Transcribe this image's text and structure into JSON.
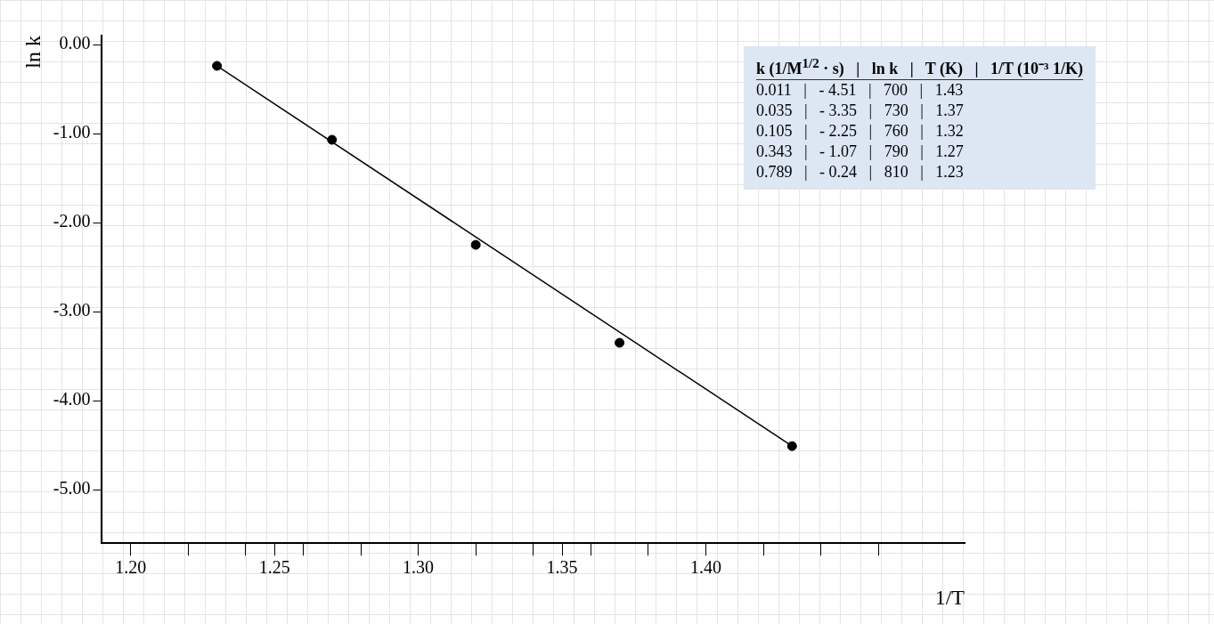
{
  "chart_data": {
    "type": "scatter",
    "xlabel": "1/T",
    "ylabel": "ln k",
    "xlim": [
      1.19,
      1.49
    ],
    "ylim": [
      -5.6,
      0.1
    ],
    "xticks": [
      {
        "value": 1.2,
        "label": "1.20"
      },
      {
        "value": 1.22,
        "label": null
      },
      {
        "value": 1.24,
        "label": null
      },
      {
        "value": 1.25,
        "label": "1.25"
      },
      {
        "value": 1.26,
        "label": null
      },
      {
        "value": 1.28,
        "label": null
      },
      {
        "value": 1.3,
        "label": "1.30"
      },
      {
        "value": 1.32,
        "label": null
      },
      {
        "value": 1.34,
        "label": null
      },
      {
        "value": 1.35,
        "label": "1.35"
      },
      {
        "value": 1.36,
        "label": null
      },
      {
        "value": 1.38,
        "label": null
      },
      {
        "value": 1.4,
        "label": "1.40"
      },
      {
        "value": 1.42,
        "label": null
      },
      {
        "value": 1.44,
        "label": null
      },
      {
        "value": 1.46,
        "label": null
      }
    ],
    "yticks": [
      {
        "value": 0,
        "label": "0.00"
      },
      {
        "value": -1,
        "label": "-1.00"
      },
      {
        "value": -2,
        "label": "-2.00"
      },
      {
        "value": -3,
        "label": "-3.00"
      },
      {
        "value": -4,
        "label": "-4.00"
      },
      {
        "value": -5,
        "label": "-5.00"
      }
    ],
    "grid": false,
    "legend": false,
    "series": [
      {
        "color": "#000000",
        "marker": "circle",
        "x": [
          1.43,
          1.37,
          1.32,
          1.27,
          1.23
        ],
        "values": [
          -4.51,
          -3.35,
          -2.25,
          -1.07,
          -0.24
        ]
      },
      {
        "type": "line",
        "color": "#000000",
        "marker": "none",
        "line_style": "solid",
        "x": [
          1.23,
          1.43
        ],
        "values": [
          -0.24,
          -4.51
        ]
      }
    ],
    "annotations": [
      "k (1/M$^{1/2}$ · s)   |   ln k   |   T (K)   |   1/T (10⁻³ 1/K)",
      "0.011   |   - 4.51   |   700   |   1.43",
      "0.035   |   - 3.35   |   730   |   1.37",
      "0.105   |   - 2.25   |   760   |   1.32",
      "0.343   |   - 1.07   |   790   |   1.27",
      "0.789   |   - 0.24   |   810   |   1.23"
    ]
  }
}
